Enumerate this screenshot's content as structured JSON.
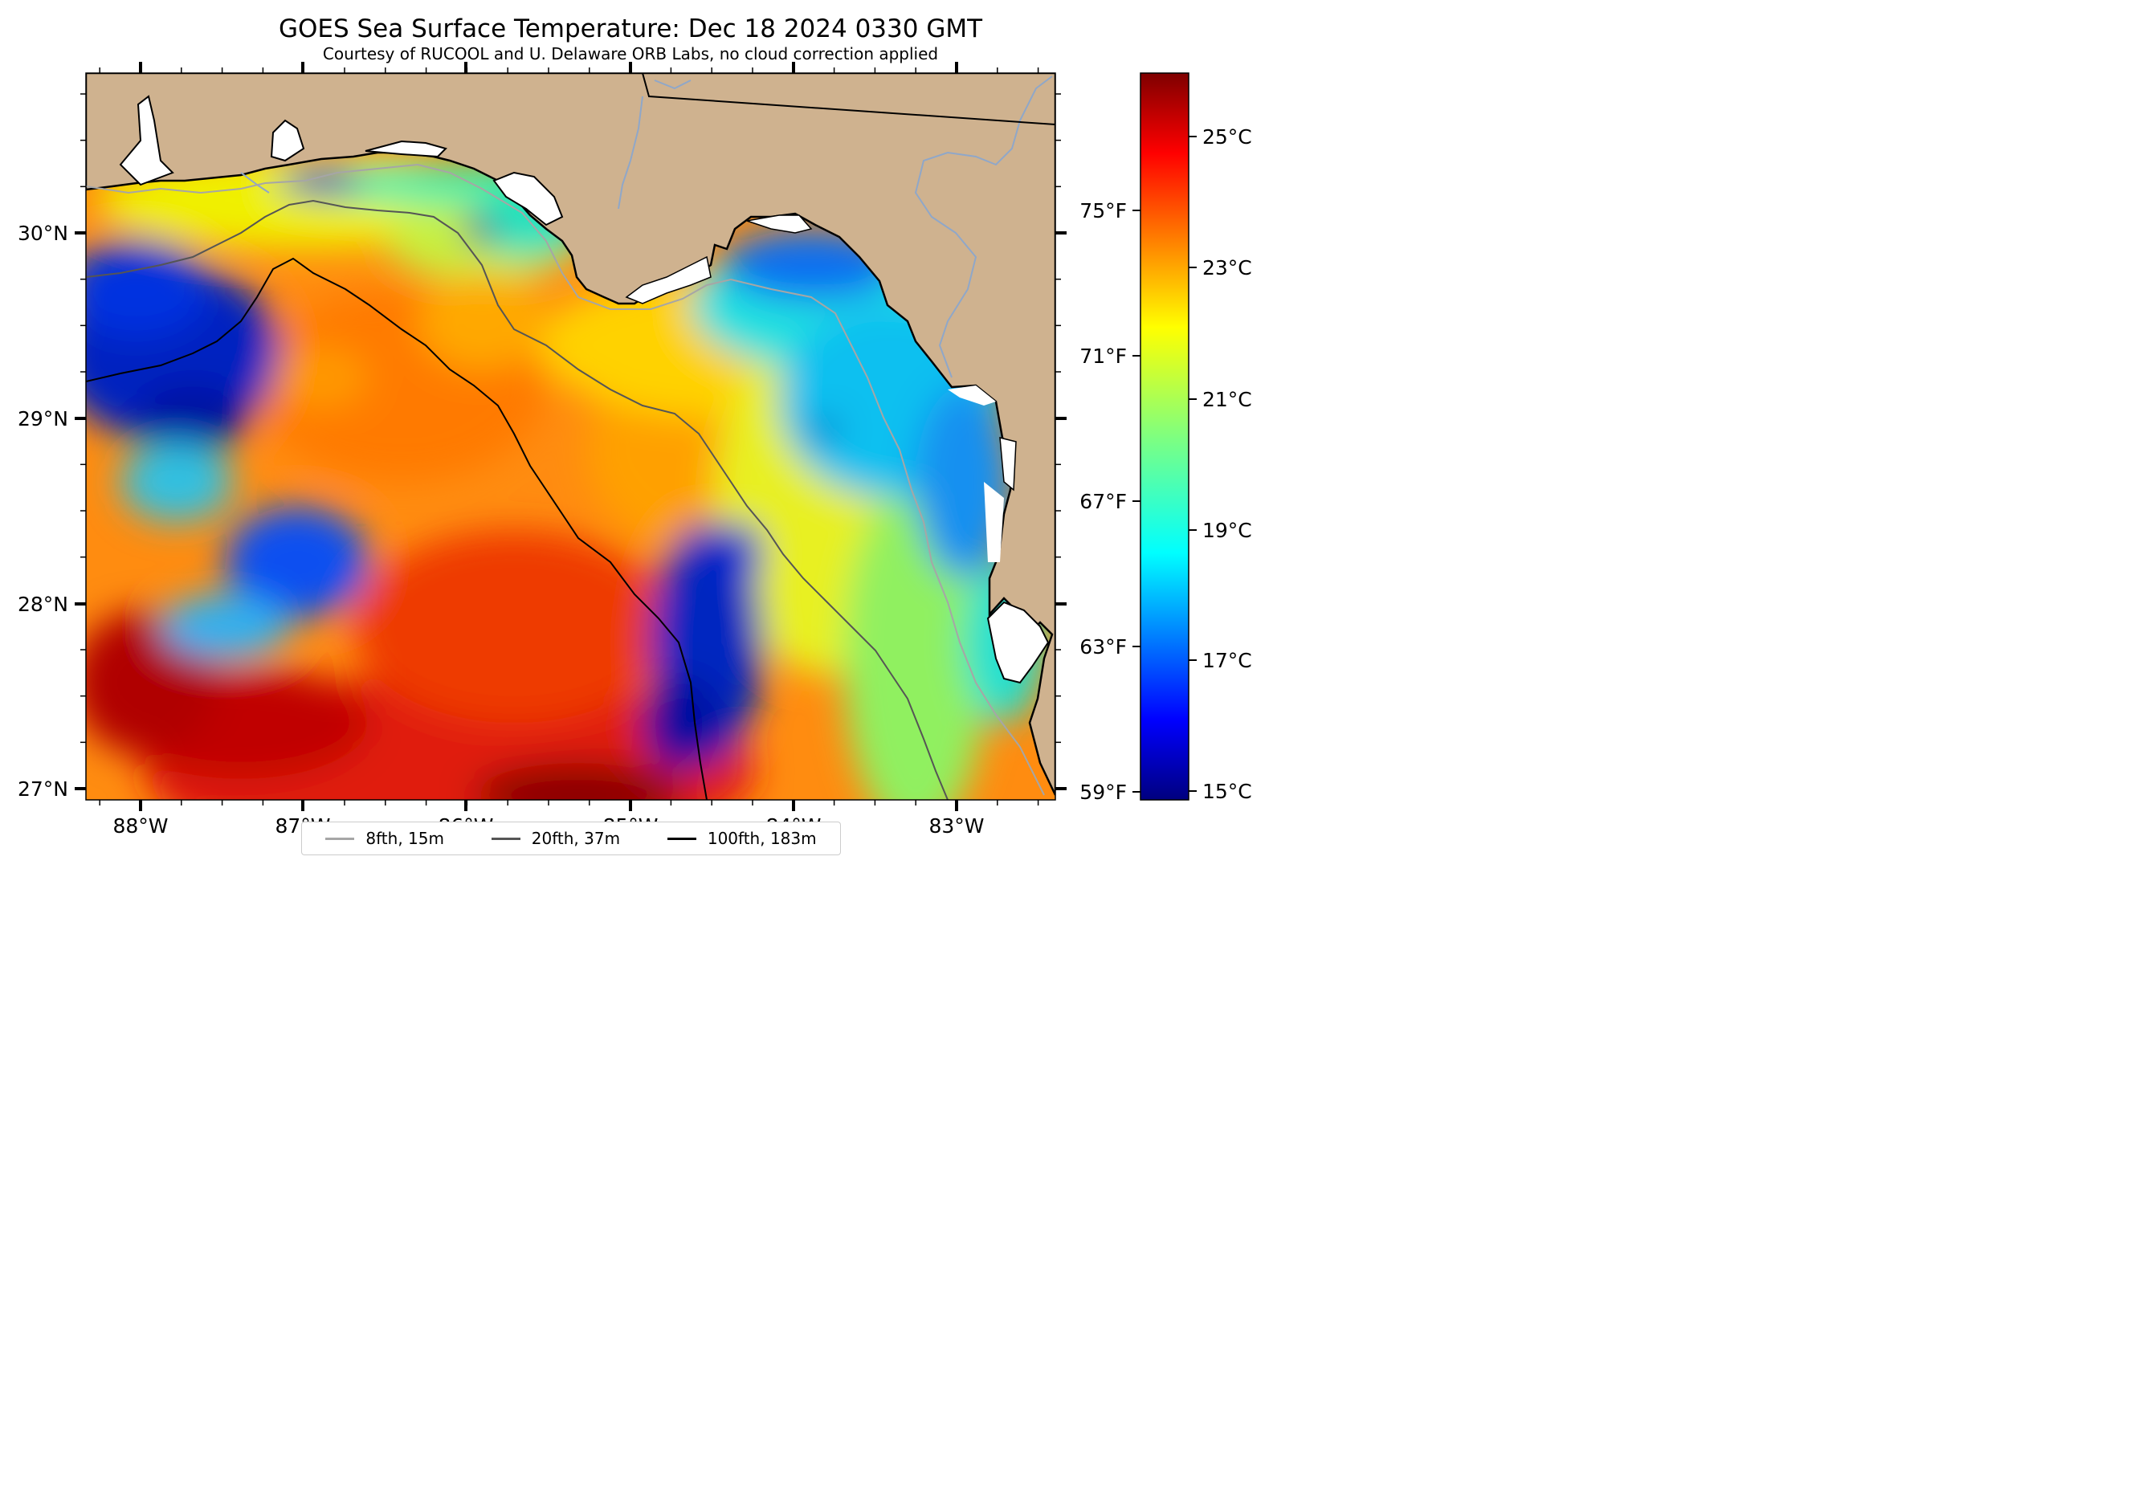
{
  "title": "GOES Sea Surface Temperature: Dec 18 2024 0330 GMT",
  "subtitle": "Courtesy of RUCOOL and U. Delaware ORB Labs, no cloud correction applied",
  "map": {
    "lon_ticks": [
      "88°W",
      "87°W",
      "86°W",
      "85°W",
      "84°W",
      "83°W"
    ],
    "lat_ticks": [
      "30°N",
      "29°N",
      "28°N",
      "27°N"
    ],
    "land_color": "#CFB28F",
    "coastline_color": "#000000",
    "river_color": "#8FA7C9"
  },
  "colorbar": {
    "celsius_ticks": [
      "25°C",
      "23°C",
      "21°C",
      "19°C",
      "17°C",
      "15°C"
    ],
    "fahrenheit_ticks": [
      "75°F",
      "71°F",
      "67°F",
      "63°F",
      "59°F"
    ],
    "colormap": "jet"
  },
  "legend": {
    "items": [
      {
        "label": "8fth, 15m",
        "color": "#A6A6A6"
      },
      {
        "label": "20fth, 37m",
        "color": "#555555"
      },
      {
        "label": "100fth, 183m",
        "color": "#000000"
      }
    ]
  }
}
